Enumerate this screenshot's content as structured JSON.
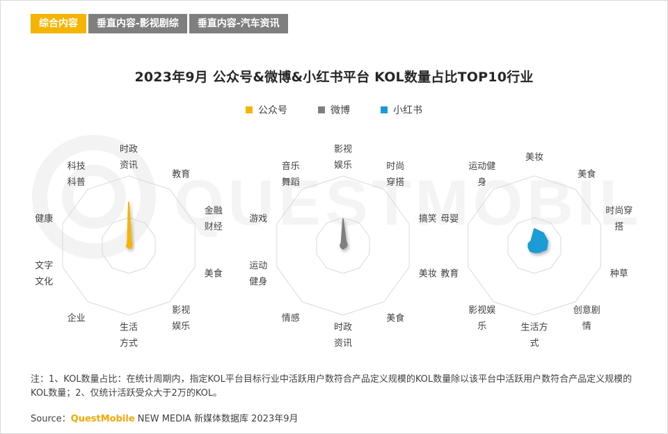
{
  "tabs": [
    {
      "label": "综合内容",
      "active": true
    },
    {
      "label": "垂直内容-影视剧综",
      "active": false
    },
    {
      "label": "垂直内容-汽车资讯",
      "active": false
    }
  ],
  "watermark_text": "QUESTMOBILE",
  "note": "注：1、KOL数量占比：在统计周期内，指定KOL平台目标行业中活跃用户数符合产品定义规模的KOL数量除以该平台中活跃用户数符合产品定义规模的KOL数量；2、仅统计活跃受众大于2万的KOL。",
  "source": {
    "prefix": "Source：",
    "brand": "QuestMobile",
    "rest": " NEW MEDIA 新媒体数据库 2023年9月"
  },
  "colors": {
    "accent": "#f5b400",
    "gray": "#7f7f7f",
    "blue": "#1a9bd7"
  },
  "chart_data": [
    {
      "type": "radar",
      "title": "2023年9月 公众号&微博&小红书平台 KOL数量占比TOP10行业",
      "legend": [
        "公众号",
        "微博",
        "小红书"
      ],
      "legend_placement": "top-center",
      "series": [
        {
          "name": "公众号",
          "color": "#f5b400",
          "axes": [
            "时政资讯",
            "教育",
            "金融财经",
            "美食",
            "影视娱乐",
            "生活方式",
            "企业",
            "文字文化",
            "健康",
            "科技科普"
          ],
          "values": [
            0.62,
            0.06,
            0.05,
            0.04,
            0.04,
            0.04,
            0.03,
            0.03,
            0.03,
            0.03
          ]
        },
        {
          "name": "微博",
          "color": "#7f7f7f",
          "axes": [
            "影视娱乐",
            "时尚穿搭",
            "搞笑",
            "美妆",
            "美食",
            "时政资讯",
            "情感",
            "运动健身",
            "游戏",
            "音乐舞蹈"
          ],
          "values": [
            0.38,
            0.07,
            0.06,
            0.05,
            0.04,
            0.05,
            0.04,
            0.04,
            0.04,
            0.04
          ]
        },
        {
          "name": "小红书",
          "color": "#1a9bd7",
          "axes": [
            "美妆",
            "美食",
            "时尚穿搭",
            "种草",
            "创意剧情",
            "生活方式",
            "影视娱乐",
            "教育",
            "母婴",
            "运动健身"
          ],
          "values": [
            0.24,
            0.22,
            0.2,
            0.18,
            0.12,
            0.1,
            0.1,
            0.09,
            0.09,
            0.08
          ]
        }
      ],
      "axis_labels": [
        [
          [
            "时政",
            "资讯"
          ],
          [
            "教育"
          ],
          [
            "金融",
            "财经"
          ],
          [
            "美食"
          ],
          [
            "影视",
            "娱乐"
          ],
          [
            "生活",
            "方式"
          ],
          [
            "企业"
          ],
          [
            "文字",
            "文化"
          ],
          [
            "健康"
          ],
          [
            "科技",
            "科普"
          ]
        ],
        [
          [
            "影视",
            "娱乐"
          ],
          [
            "时尚",
            "穿搭"
          ],
          [
            "搞笑"
          ],
          [
            "美妆"
          ],
          [
            "美食"
          ],
          [
            "时政",
            "资讯"
          ],
          [
            "情感"
          ],
          [
            "运动",
            "健身"
          ],
          [
            "游戏"
          ],
          [
            "音乐",
            "舞蹈"
          ]
        ],
        [
          [
            "美妆"
          ],
          [
            "美食"
          ],
          [
            "时尚穿",
            "搭"
          ],
          [
            "种草"
          ],
          [
            "创意剧",
            "情"
          ],
          [
            "生活方",
            "式"
          ],
          [
            "影视娱",
            "乐"
          ],
          [
            "教育"
          ],
          [
            "母婴"
          ],
          [
            "运动健",
            "身"
          ]
        ]
      ],
      "rlim": [
        0,
        1
      ],
      "grid": true
    }
  ]
}
